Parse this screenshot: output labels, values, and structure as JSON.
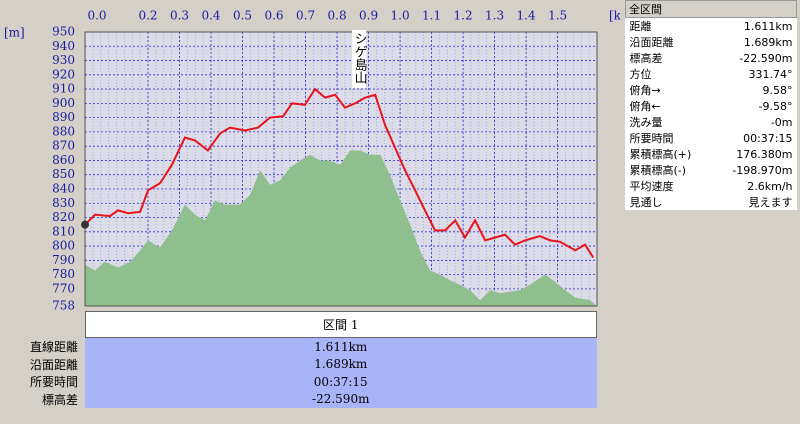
{
  "chart_data": {
    "type": "line",
    "x_unit": "[km]",
    "y_unit": "[m]",
    "annotation": {
      "text": "シゲ島山",
      "x": 0.87
    },
    "xlim": [
      0,
      1.625
    ],
    "xticks": [
      {
        "value": 0,
        "label": "0.0"
      },
      0.2,
      0.3,
      0.4,
      0.5,
      0.6,
      0.7,
      0.8,
      0.9,
      {
        "value": 1,
        "label": "1.0"
      },
      1.1,
      1.2,
      1.3,
      1.4,
      1.5
    ],
    "ylim": [
      758,
      950
    ],
    "yticks": [
      758,
      770,
      780,
      790,
      800,
      810,
      820,
      830,
      840,
      850,
      860,
      870,
      880,
      890,
      900,
      910,
      920,
      930,
      940,
      950
    ],
    "grid": true,
    "series": [
      {
        "color": "#8fbf8f",
        "fill": true,
        "x": [
          0,
          0.032,
          0.063,
          0.105,
          0.143,
          0.175,
          0.2,
          0.238,
          0.276,
          0.317,
          0.349,
          0.381,
          0.413,
          0.444,
          0.492,
          0.524,
          0.556,
          0.587,
          0.619,
          0.651,
          0.683,
          0.714,
          0.746,
          0.778,
          0.81,
          0.841,
          0.873,
          0.905,
          0.937,
          0.968,
          1.0,
          1.032,
          1.063,
          1.095,
          1.127,
          1.159,
          1.19,
          1.222,
          1.254,
          1.286,
          1.317,
          1.349,
          1.381,
          1.413,
          1.46,
          1.492,
          1.524,
          1.556,
          1.603,
          1.625
        ],
        "values": [
          787,
          783,
          789,
          785,
          789,
          797,
          804,
          799,
          811,
          829,
          822,
          818,
          832,
          829,
          829,
          836,
          853,
          843,
          846,
          855,
          860,
          864,
          860,
          860,
          857,
          867,
          867,
          864,
          864,
          850,
          832,
          815,
          797,
          783,
          780,
          776,
          773,
          769,
          762,
          769,
          767,
          768,
          769,
          773,
          780,
          775,
          769,
          764,
          762,
          758
        ]
      },
      {
        "color": "#e8141c",
        "fill": false,
        "x": [
          0,
          0.032,
          0.079,
          0.105,
          0.137,
          0.175,
          0.2,
          0.238,
          0.276,
          0.317,
          0.349,
          0.39,
          0.429,
          0.46,
          0.508,
          0.549,
          0.587,
          0.629,
          0.657,
          0.698,
          0.73,
          0.762,
          0.794,
          0.825,
          0.857,
          0.889,
          0.921,
          0.952,
          0.984,
          1.016,
          1.048,
          1.079,
          1.111,
          1.143,
          1.175,
          1.206,
          1.238,
          1.27,
          1.302,
          1.333,
          1.365,
          1.397,
          1.444,
          1.476,
          1.508,
          1.556,
          1.587,
          1.613
        ],
        "values": [
          815,
          822,
          821,
          825,
          823,
          824,
          839,
          844,
          857,
          876,
          874,
          867,
          879,
          883,
          881,
          883,
          890,
          891,
          900,
          899,
          910,
          904,
          906,
          897,
          900,
          904,
          906,
          885,
          869,
          853,
          839,
          825,
          811,
          811,
          818,
          806,
          818,
          804,
          806,
          808,
          801,
          804,
          807,
          804,
          803,
          797,
          801,
          792
        ]
      }
    ]
  },
  "summary": {
    "title": "全区間",
    "rows": [
      [
        "距離",
        "1.611km"
      ],
      [
        "沿面距離",
        "1.689km"
      ],
      [
        "標高差",
        "-22.590m"
      ],
      [
        "方位",
        "331.74°"
      ],
      [
        "俯角→",
        "9.58°"
      ],
      [
        "俯角←",
        "-9.58°"
      ],
      [
        "洗み量",
        "-0m"
      ],
      [
        "所要時間",
        "00:37:15"
      ],
      [
        "累積標高(+)",
        "176.380m"
      ],
      [
        "累積標高(-)",
        "-198.970m"
      ],
      [
        "平均速度",
        "2.6km/h"
      ],
      [
        "見通し",
        "見えます"
      ]
    ]
  },
  "segment": {
    "title": "区間 1",
    "rows": [
      [
        "直線距離",
        "1.611km"
      ],
      [
        "沿面距離",
        "1.689km"
      ],
      [
        "所要時間",
        "00:37:15"
      ],
      [
        "標高差",
        "-22.590m"
      ]
    ]
  }
}
